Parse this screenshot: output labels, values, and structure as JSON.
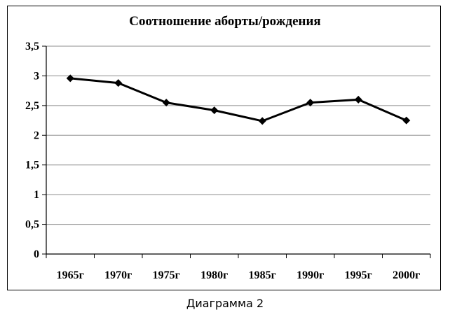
{
  "chart_data": {
    "type": "line",
    "title": "Соотношение аборты/рождения",
    "caption": "Диаграмма 2",
    "categories": [
      "1965г",
      "1970г",
      "1975г",
      "1980г",
      "1985г",
      "1990г",
      "1995г",
      "2000г"
    ],
    "series": [
      {
        "values": [
          2.96,
          2.88,
          2.55,
          2.42,
          2.24,
          2.55,
          2.6,
          2.25
        ],
        "color": "#000000",
        "marker": "diamond"
      }
    ],
    "y_ticks": [
      "0",
      "0,5",
      "1",
      "1,5",
      "2",
      "2,5",
      "3",
      "3,5"
    ],
    "ylim": [
      0,
      3.5
    ],
    "grid": true,
    "legend": "none"
  }
}
